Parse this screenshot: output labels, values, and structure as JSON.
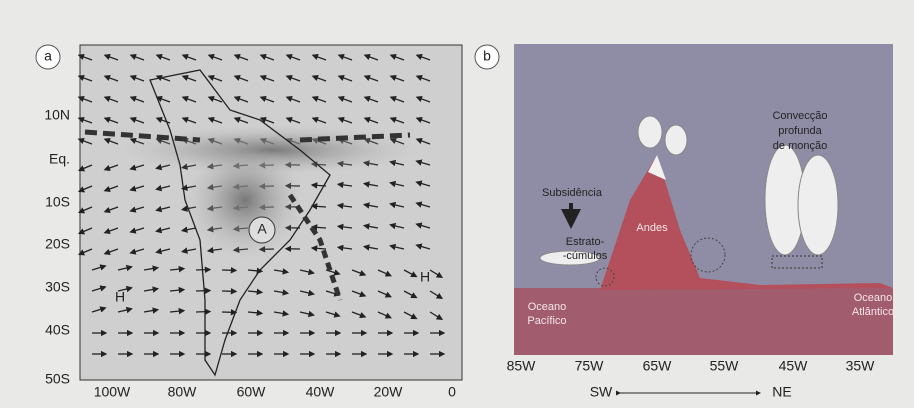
{
  "panel_a": {
    "label": "a",
    "lat_labels": [
      "10N",
      "Eq.",
      "10S",
      "20S",
      "30S",
      "40S",
      "50S"
    ],
    "lon_labels": [
      "100W",
      "80W",
      "60W",
      "40W",
      "20W",
      "0"
    ],
    "map_labels": [
      "A",
      "H",
      "H"
    ]
  },
  "panel_b": {
    "label": "b",
    "x_labels": [
      "85W",
      "75W",
      "65W",
      "55W",
      "45W",
      "35W"
    ],
    "subsidence": "Subsidência",
    "stratocumulus": [
      "Estrato-",
      "-cúmulos"
    ],
    "andes": "Andes",
    "convection": [
      "Convecção",
      "profunda",
      "de monção"
    ],
    "pacific": [
      "Oceano",
      "Pacífico"
    ],
    "atlantic": [
      "Oceano",
      "Atlântico"
    ],
    "direction": [
      "SW",
      "NE"
    ]
  }
}
